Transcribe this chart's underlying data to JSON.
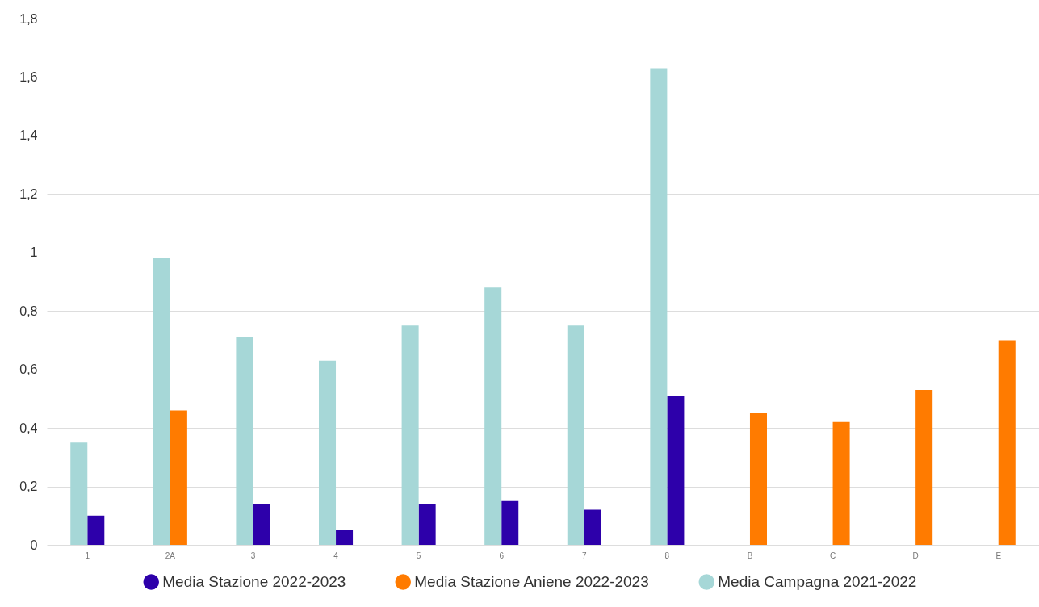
{
  "chart_data": {
    "type": "bar",
    "categories": [
      "1",
      "2A",
      "3",
      "4",
      "5",
      "6",
      "7",
      "8",
      "B",
      "C",
      "D",
      "E"
    ],
    "series": [
      {
        "name": "Media Stazione 2022-2023",
        "color": "#2d00aa",
        "values": [
          0.1,
          null,
          0.14,
          0.05,
          0.14,
          0.15,
          0.12,
          0.51,
          null,
          null,
          null,
          null
        ]
      },
      {
        "name": "Media Stazione Aniene 2022-2023",
        "color": "#ff7b00",
        "values": [
          null,
          0.46,
          null,
          null,
          null,
          null,
          null,
          null,
          0.45,
          0.42,
          0.53,
          0.7
        ]
      },
      {
        "name": "Media Campagna 2021-2022",
        "color": "#a6d7d7",
        "values": [
          0.35,
          0.98,
          0.71,
          0.63,
          0.75,
          0.88,
          0.75,
          1.63,
          null,
          null,
          null,
          null
        ]
      }
    ],
    "ylim": [
      0,
      1.8
    ],
    "yticks": [
      0,
      {
        "value": 0.2,
        "label": "0,2"
      },
      {
        "value": 0.4,
        "label": "0,4"
      },
      {
        "value": 0.6,
        "label": "0,6"
      },
      {
        "value": 0.8,
        "label": "0,8"
      },
      1,
      {
        "value": 1.2,
        "label": "1,2"
      },
      {
        "value": 1.4,
        "label": "1,4"
      },
      {
        "value": 1.6,
        "label": "1,6"
      },
      {
        "value": 1.8,
        "label": "1,8"
      }
    ],
    "grid": "y",
    "legend": "bottom"
  }
}
